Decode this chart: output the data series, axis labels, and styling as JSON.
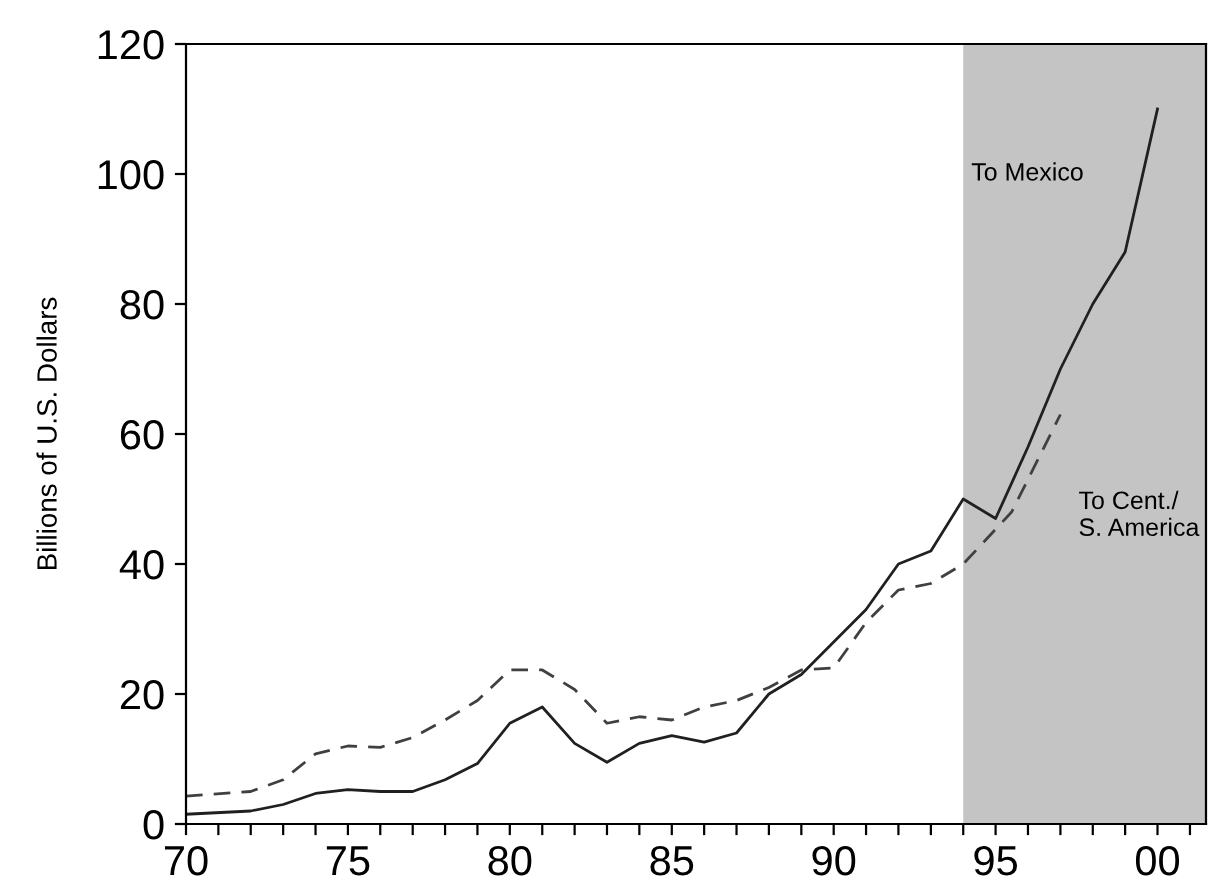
{
  "chart_data": {
    "type": "line",
    "ylabel": "Billions of U.S. Dollars",
    "xlim": [
      "1970",
      "2001-07"
    ],
    "ylim": [
      0,
      120
    ],
    "xticks": [
      {
        "value": "1970",
        "label": "70"
      },
      {
        "value": "1971",
        "label": null
      },
      {
        "value": "1972",
        "label": null
      },
      {
        "value": "1973",
        "label": null
      },
      {
        "value": "1974",
        "label": null
      },
      {
        "value": "1975",
        "label": "75"
      },
      {
        "value": "1976",
        "label": null
      },
      {
        "value": "1977",
        "label": null
      },
      {
        "value": "1978",
        "label": null
      },
      {
        "value": "1979",
        "label": null
      },
      {
        "value": "1980",
        "label": "80"
      },
      {
        "value": "1981",
        "label": null
      },
      {
        "value": "1982",
        "label": null
      },
      {
        "value": "1983",
        "label": null
      },
      {
        "value": "1984",
        "label": null
      },
      {
        "value": "1985",
        "label": "85"
      },
      {
        "value": "1986",
        "label": null
      },
      {
        "value": "1987",
        "label": null
      },
      {
        "value": "1988",
        "label": null
      },
      {
        "value": "1989",
        "label": null
      },
      {
        "value": "1990",
        "label": "90"
      },
      {
        "value": "1991",
        "label": null
      },
      {
        "value": "1992",
        "label": null
      },
      {
        "value": "1993",
        "label": null
      },
      {
        "value": "1994",
        "label": null
      },
      {
        "value": "1995",
        "label": "95"
      },
      {
        "value": "1996",
        "label": null
      },
      {
        "value": "1997",
        "label": null
      },
      {
        "value": "1998",
        "label": null
      },
      {
        "value": "1999",
        "label": null
      },
      {
        "value": "2000",
        "label": "00"
      },
      {
        "value": "2001",
        "label": null
      }
    ],
    "yticks": [
      0,
      20,
      40,
      60,
      80,
      100,
      120
    ],
    "series": [
      {
        "color": "#202020",
        "line_style": "solid",
        "x": [
          "1970",
          "1972",
          "1973",
          "1974",
          "1975",
          "1976",
          "1977",
          "1978",
          "1979",
          "1980",
          "1981",
          "1982",
          "1983",
          "1984",
          "1985",
          "1986",
          "1987",
          "1988",
          "1989",
          "1990",
          "1991",
          "1992",
          "1993",
          "1994",
          "1995",
          "1996",
          "1997",
          "1998",
          "1999",
          "2000"
        ],
        "values": [
          1.5,
          2,
          3,
          4.7,
          5.3,
          5,
          5,
          6.8,
          9.3,
          15.5,
          18,
          12.4,
          9.5,
          12.4,
          13.6,
          12.6,
          14,
          20,
          23,
          28,
          33,
          40,
          42,
          50,
          47,
          58,
          70,
          80,
          88,
          110
        ]
      },
      {
        "color": "#404040",
        "line_style": "dashed",
        "x": [
          "1970",
          "1972",
          "1973",
          "1974",
          "1975",
          "1976",
          "1977",
          "1978",
          "1979",
          "1980",
          "1981",
          "1982",
          "1983",
          "1984",
          "1985",
          "1986",
          "1987",
          "1988",
          "1989",
          "1990",
          "1991",
          "1992",
          "1993",
          "1994",
          "1995-07",
          "1997"
        ],
        "values": [
          4.3,
          5,
          6.8,
          10.8,
          12,
          11.8,
          13.3,
          16,
          19,
          23.7,
          23.7,
          20.7,
          15.5,
          16.5,
          16,
          18,
          19,
          21,
          23.7,
          24,
          31,
          36,
          37,
          40,
          48,
          63
        ]
      }
    ],
    "bands": [
      {
        "axis": "x",
        "from": "1994",
        "to": "2001-07",
        "color": "#c4c4c4"
      }
    ],
    "annotations": [
      {
        "text": "To Mexico",
        "x": "1994-04",
        "y": 100
      },
      "To Cent./\nS. America"
    ]
  }
}
